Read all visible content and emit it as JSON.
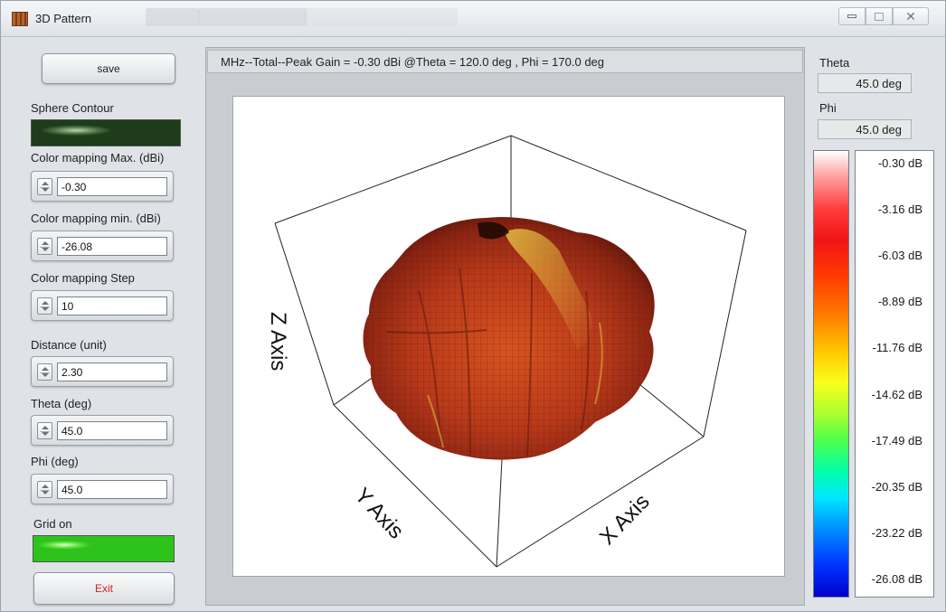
{
  "window": {
    "title": "3D Pattern",
    "controls": [
      "minimize",
      "maximize",
      "close"
    ],
    "close_glyph": "✕"
  },
  "left_panel": {
    "save_label": "save",
    "sphere_contour": {
      "label": "Sphere Contour",
      "led_state": "off"
    },
    "color_max": {
      "label": "Color mapping Max. (dBi)",
      "value": "-0.30"
    },
    "color_min": {
      "label": "Color mapping min. (dBi)",
      "value": "-26.08"
    },
    "color_step": {
      "label": "Color mapping Step",
      "value": "10"
    },
    "distance": {
      "label": "Distance (unit)",
      "value": "2.30"
    },
    "theta": {
      "label": "Theta (deg)",
      "value": "45.0"
    },
    "phi": {
      "label": "Phi (deg)",
      "value": "45.0"
    },
    "grid_on": {
      "label": "Grid on",
      "led_state": "on"
    },
    "exit_label": "Exit"
  },
  "plot": {
    "header": "MHz--Total--Peak Gain = -0.30 dBi @Theta = 120.0 deg , Phi = 170.0 deg",
    "x_axis_label": "X Axis",
    "y_axis_label": "Y Axis",
    "z_axis_label": "Z Axis"
  },
  "right_panel": {
    "theta_label": "Theta",
    "theta_value": "45.0 deg",
    "phi_label": "Phi",
    "phi_value": "45.0 deg",
    "colorbar_labels": [
      "-0.30 dB",
      "-3.16 dB",
      "-6.03 dB",
      "-8.89 dB",
      "-11.76 dB",
      "-14.62 dB",
      "-17.49 dB",
      "-20.35 dB",
      "-23.22 dB",
      "-26.08 dB"
    ]
  },
  "colors": {
    "exit_text": "#d62020",
    "grid_led": "#3fd82a",
    "contour_led": "#2a4a24",
    "pattern_main": "#c8401c",
    "pattern_highlight": "#e8c640"
  }
}
